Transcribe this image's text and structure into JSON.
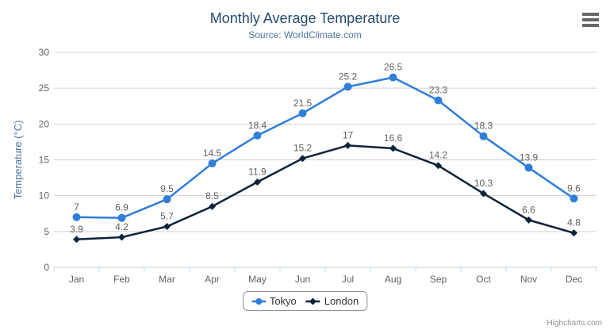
{
  "header": {
    "title": "Monthly Average Temperature",
    "subtitle": "Source: WorldClimate.com"
  },
  "toolbar": {
    "export_menu_icon": "hamburger-menu"
  },
  "credit": {
    "label": "Highcharts.com"
  },
  "chart_data": {
    "type": "line",
    "title": "Monthly Average Temperature",
    "subtitle": "Source: WorldClimate.com",
    "categories": [
      "Jan",
      "Feb",
      "Mar",
      "Apr",
      "May",
      "Jun",
      "Jul",
      "Aug",
      "Sep",
      "Oct",
      "Nov",
      "Dec"
    ],
    "xlabel": "",
    "ylabel": "Temperature (°C)",
    "ylim": [
      0,
      30
    ],
    "yticks": [
      0,
      5,
      10,
      15,
      20,
      25,
      30
    ],
    "grid": true,
    "data_labels_visible": true,
    "legend_position": "bottom-center",
    "series": [
      {
        "name": "Tokyo",
        "color": "#2f7ed8",
        "marker": "circle",
        "values": [
          7,
          6.9,
          9.5,
          14.5,
          18.4,
          21.5,
          25.2,
          26.5,
          23.3,
          18.3,
          13.9,
          9.6
        ]
      },
      {
        "name": "London",
        "color": "#0d233a",
        "marker": "diamond",
        "values": [
          3.9,
          4.2,
          5.7,
          8.5,
          11.9,
          15.2,
          17,
          16.6,
          14.2,
          10.3,
          6.6,
          4.8
        ]
      }
    ]
  },
  "colors": {
    "background": "#ffffff",
    "title": "#274b6d",
    "subtitle": "#4d759e",
    "axis_title": "#4d759e",
    "axis_label": "#606060",
    "data_label": "#606060",
    "gridline": "#d0d0d0",
    "axis_line": "#c0d0e0",
    "legend_border": "#909090",
    "legend_text": "#333333",
    "credit": "#909090",
    "menu_icon": "#666666"
  }
}
